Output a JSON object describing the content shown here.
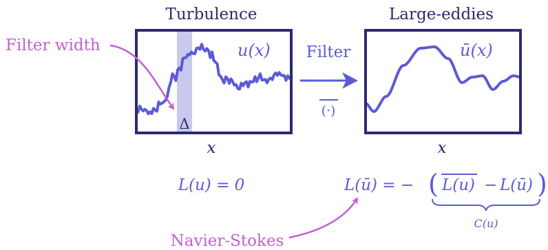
{
  "colors": {
    "frame": "#2b2a6e",
    "curve": "#5b5bd6",
    "annotation": "#c45fd0",
    "band": "#c9c9ee",
    "dark_text": "#2b2a6e"
  },
  "left_panel": {
    "title": "Turbulence",
    "curve_label": "u(x)",
    "band_label": "Δ",
    "axis_label": "x",
    "equation": "L(u) = 0"
  },
  "right_panel": {
    "title": "Large-eddies",
    "curve_label": "ū(x)",
    "axis_label": "x",
    "equation_lhs": "L(ū) = −",
    "equation_term1": "L(u)",
    "equation_minus": "−",
    "equation_term2": "L(ū)",
    "brace_label": "C(u)"
  },
  "operator": {
    "label": "Filter",
    "symbol": "(·)"
  },
  "annotations": {
    "filter_width": "Filter width",
    "navier_stokes": "Navier-Stokes"
  }
}
